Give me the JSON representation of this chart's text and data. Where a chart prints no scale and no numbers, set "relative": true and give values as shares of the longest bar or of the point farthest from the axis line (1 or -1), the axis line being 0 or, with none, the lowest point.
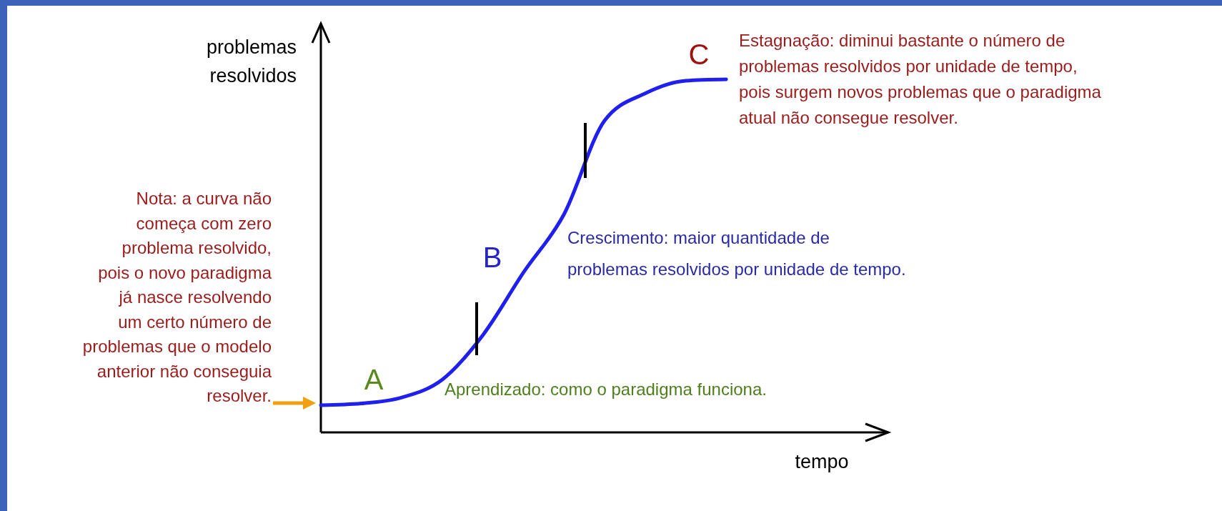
{
  "chart_data": {
    "type": "line",
    "relative": true,
    "xlabel": "tempo",
    "ylabel": "problemas\nresolvidos",
    "categories": [
      null,
      null,
      null,
      null,
      null,
      null,
      null,
      null,
      null,
      null,
      null,
      null,
      null,
      null,
      null
    ],
    "series": [
      {
        "color": "#1f1fef",
        "values": [
          0.077,
          0.082,
          0.099,
          0.15,
          0.276,
          0.453,
          0.618,
          0.883,
          0.96,
          0.996,
          1,
          null,
          null,
          null,
          null
        ]
      }
    ],
    "annotations": [
      "A",
      "B",
      "C",
      "Aprendizado: como o paradigma funciona.",
      "Crescimento: maior quantidade de\nproblemas resolvidos por unidade de tempo.",
      "Estagnação: diminui bastante o número de\nproblemas resolvidos por unidade de tempo,\npois surgem novos problemas que o paradigma\natual não consegue resolver.",
      "Nota: a curva não\ncomeça com zero\nproblema resolvido,\npois o novo paradigma\njá nasce resolvendo\num certo número de\nproblemas que o modelo\nanterior não conseguia\nresolver."
    ]
  }
}
